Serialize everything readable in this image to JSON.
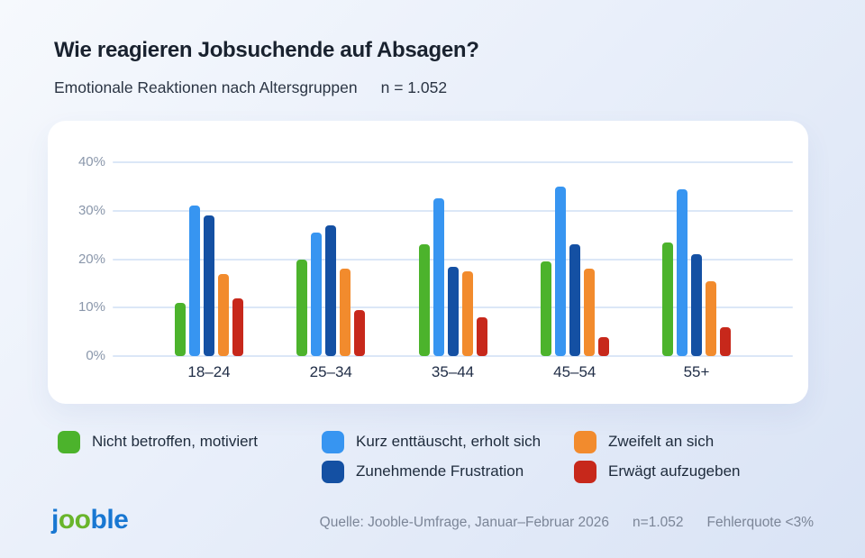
{
  "header": {
    "title": "Wie reagieren Jobsuchende auf Absagen?",
    "subtitle": "Emotionale Reaktionen nach Altersgruppen",
    "sample_size": "n = 1.052"
  },
  "chart_data": {
    "type": "bar",
    "title": "Wie reagieren Jobsuchende auf Absagen?",
    "subtitle": "Emotionale Reaktionen nach Altersgruppen",
    "categories": [
      "18–24",
      "25–34",
      "35–44",
      "45–54",
      "55+"
    ],
    "series": [
      {
        "name": "Nicht betroffen, motiviert",
        "color": "#4cb32c",
        "values": [
          11,
          20,
          23,
          19.5,
          23.5
        ]
      },
      {
        "name": "Kurz enttäuscht, erholt sich",
        "color": "#3795f1",
        "values": [
          31,
          25.5,
          32.5,
          35,
          34.5
        ]
      },
      {
        "name": "Zunehmende Frustration",
        "color": "#1450a3",
        "values": [
          29,
          27,
          18.5,
          23,
          21
        ]
      },
      {
        "name": "Zweifelt an sich",
        "color": "#f28b2d",
        "values": [
          17,
          18,
          17.5,
          18,
          15.5
        ]
      },
      {
        "name": "Erwägt aufzugeben",
        "color": "#c7281b",
        "values": [
          12,
          9.5,
          8,
          4,
          6
        ]
      }
    ],
    "ylabel": "",
    "xlabel": "",
    "ylim": [
      0,
      40
    ],
    "ytick_labels": [
      "40%",
      "30%",
      "20%",
      "10%",
      "0%"
    ],
    "grid": true,
    "legend_position": "bottom",
    "legend_columns": [
      [
        0
      ],
      [
        1,
        2
      ],
      [
        3,
        4
      ]
    ]
  },
  "footer": {
    "logo": {
      "part1": "j",
      "part2": "oo",
      "part3": "ble",
      "blue": "#1877d2",
      "green": "#69b52b"
    },
    "source": "Quelle: Jooble-Umfrage, Januar–Februar 2026",
    "sample_size": "n=1.052",
    "error_rate": "Fehlerquote <3%"
  }
}
